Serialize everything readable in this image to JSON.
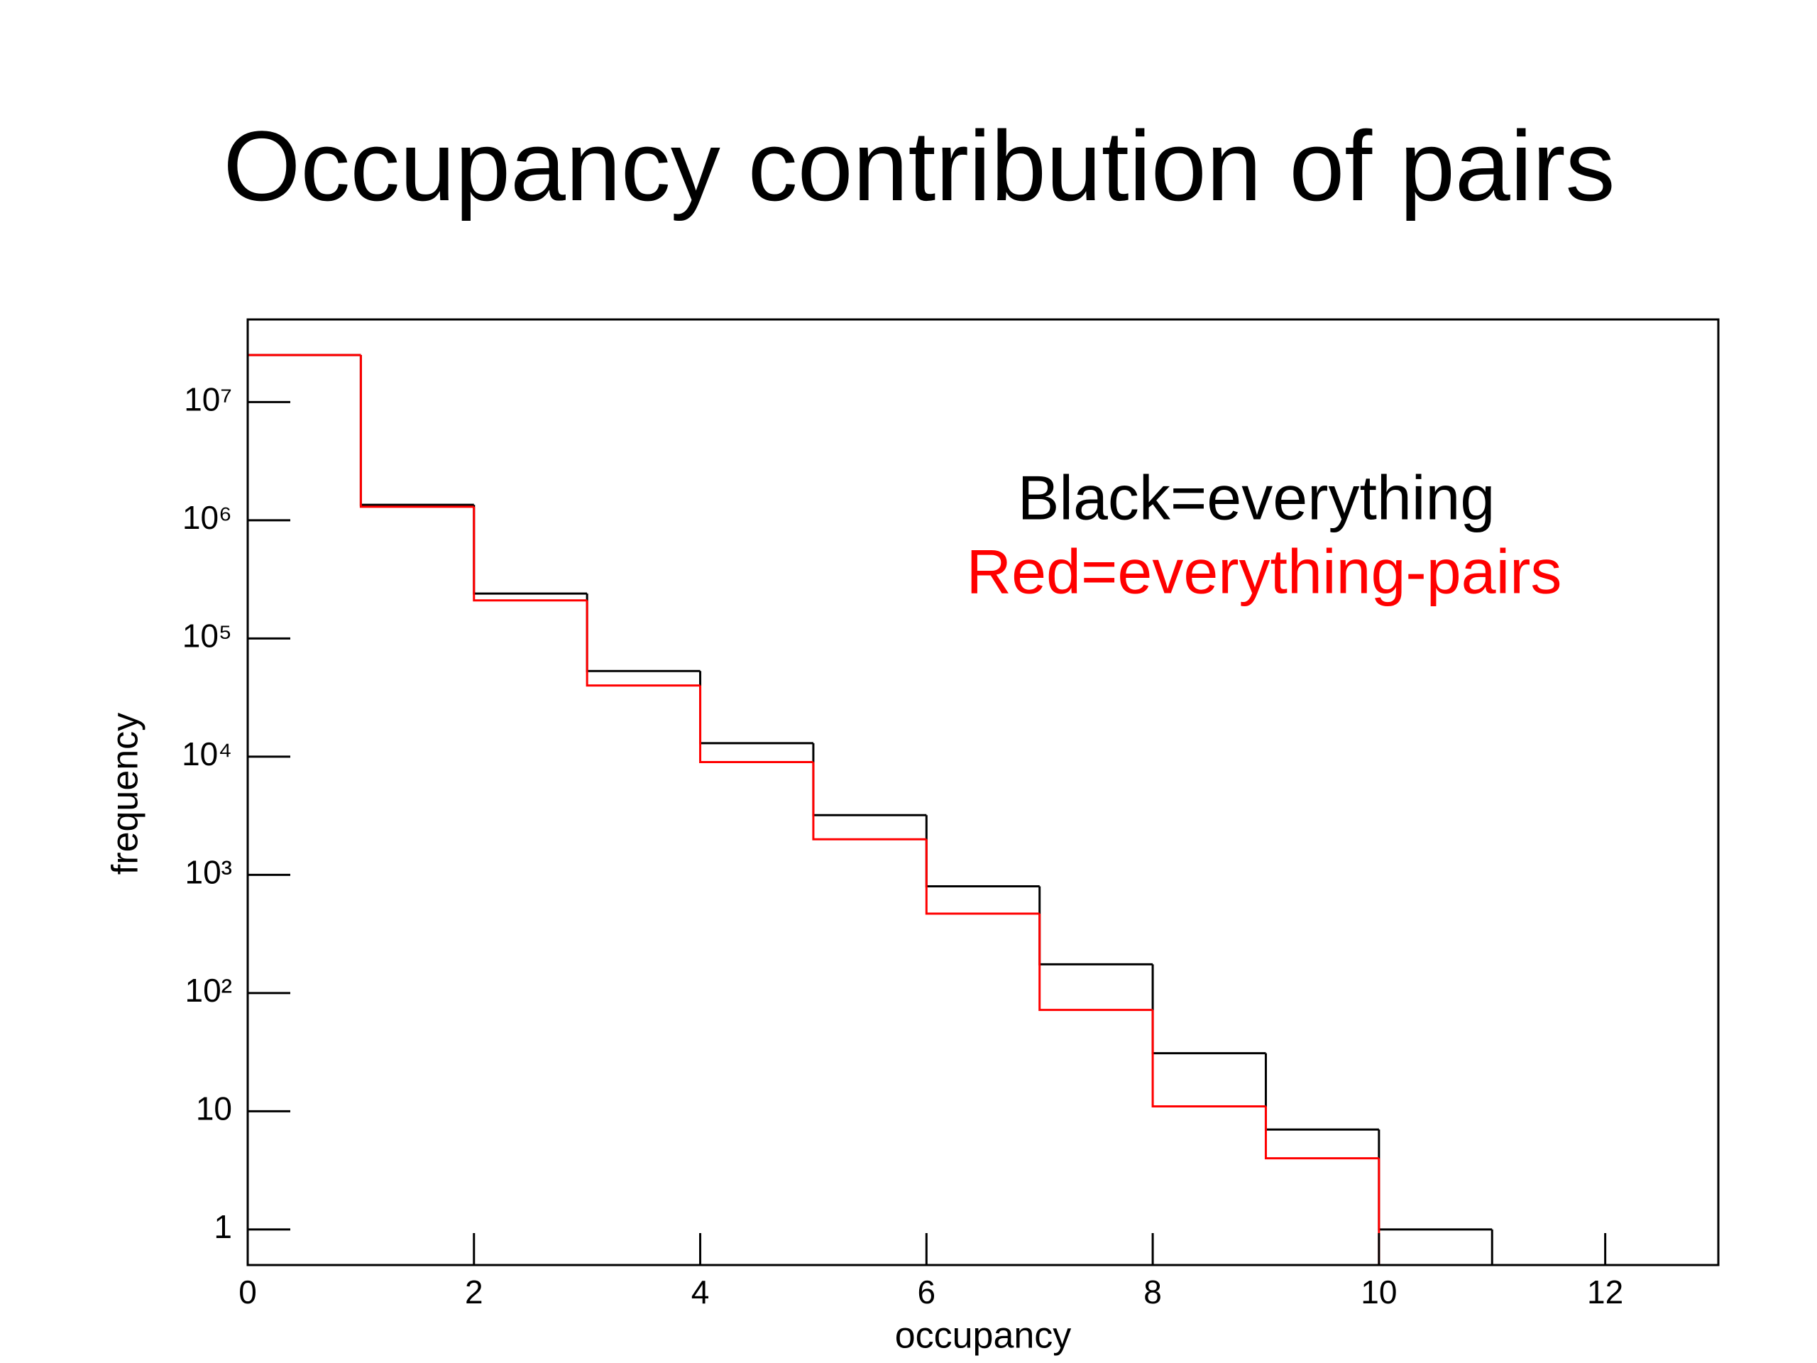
{
  "chart_data": {
    "type": "histogram",
    "title": "Occupancy contribution of pairs",
    "x_label": "occupancy",
    "y_label": "frequency",
    "log_y": true,
    "bins": [
      0,
      1,
      2,
      3,
      4,
      5,
      6,
      7,
      8,
      9,
      10,
      11,
      12,
      13
    ],
    "series": [
      {
        "name": "Black=everything",
        "color": "#000000",
        "values": [
          25000000,
          1350000,
          240000,
          53000,
          13000,
          3200,
          800,
          175,
          31,
          7,
          1,
          0,
          0
        ]
      },
      {
        "name": "Red=everything-pairs",
        "color": "#ff0000",
        "values": [
          25000000,
          1300000,
          210000,
          40000,
          9000,
          2000,
          470,
          72,
          11,
          4,
          0,
          0,
          0
        ]
      }
    ],
    "xlim": [
      0,
      13
    ],
    "xticks": [
      0,
      2,
      4,
      6,
      8,
      10,
      12
    ],
    "ylim": [
      0.5,
      50000000
    ],
    "yticks": [
      1,
      10,
      {
        "value": 100,
        "label": "10²"
      },
      {
        "value": 1000,
        "label": "10³"
      },
      {
        "value": 10000,
        "label": "10⁴"
      },
      {
        "value": 100000,
        "label": "10⁵"
      },
      {
        "value": 1000000,
        "label": "10⁶"
      },
      {
        "value": 10000000,
        "label": "10⁷"
      }
    ]
  }
}
